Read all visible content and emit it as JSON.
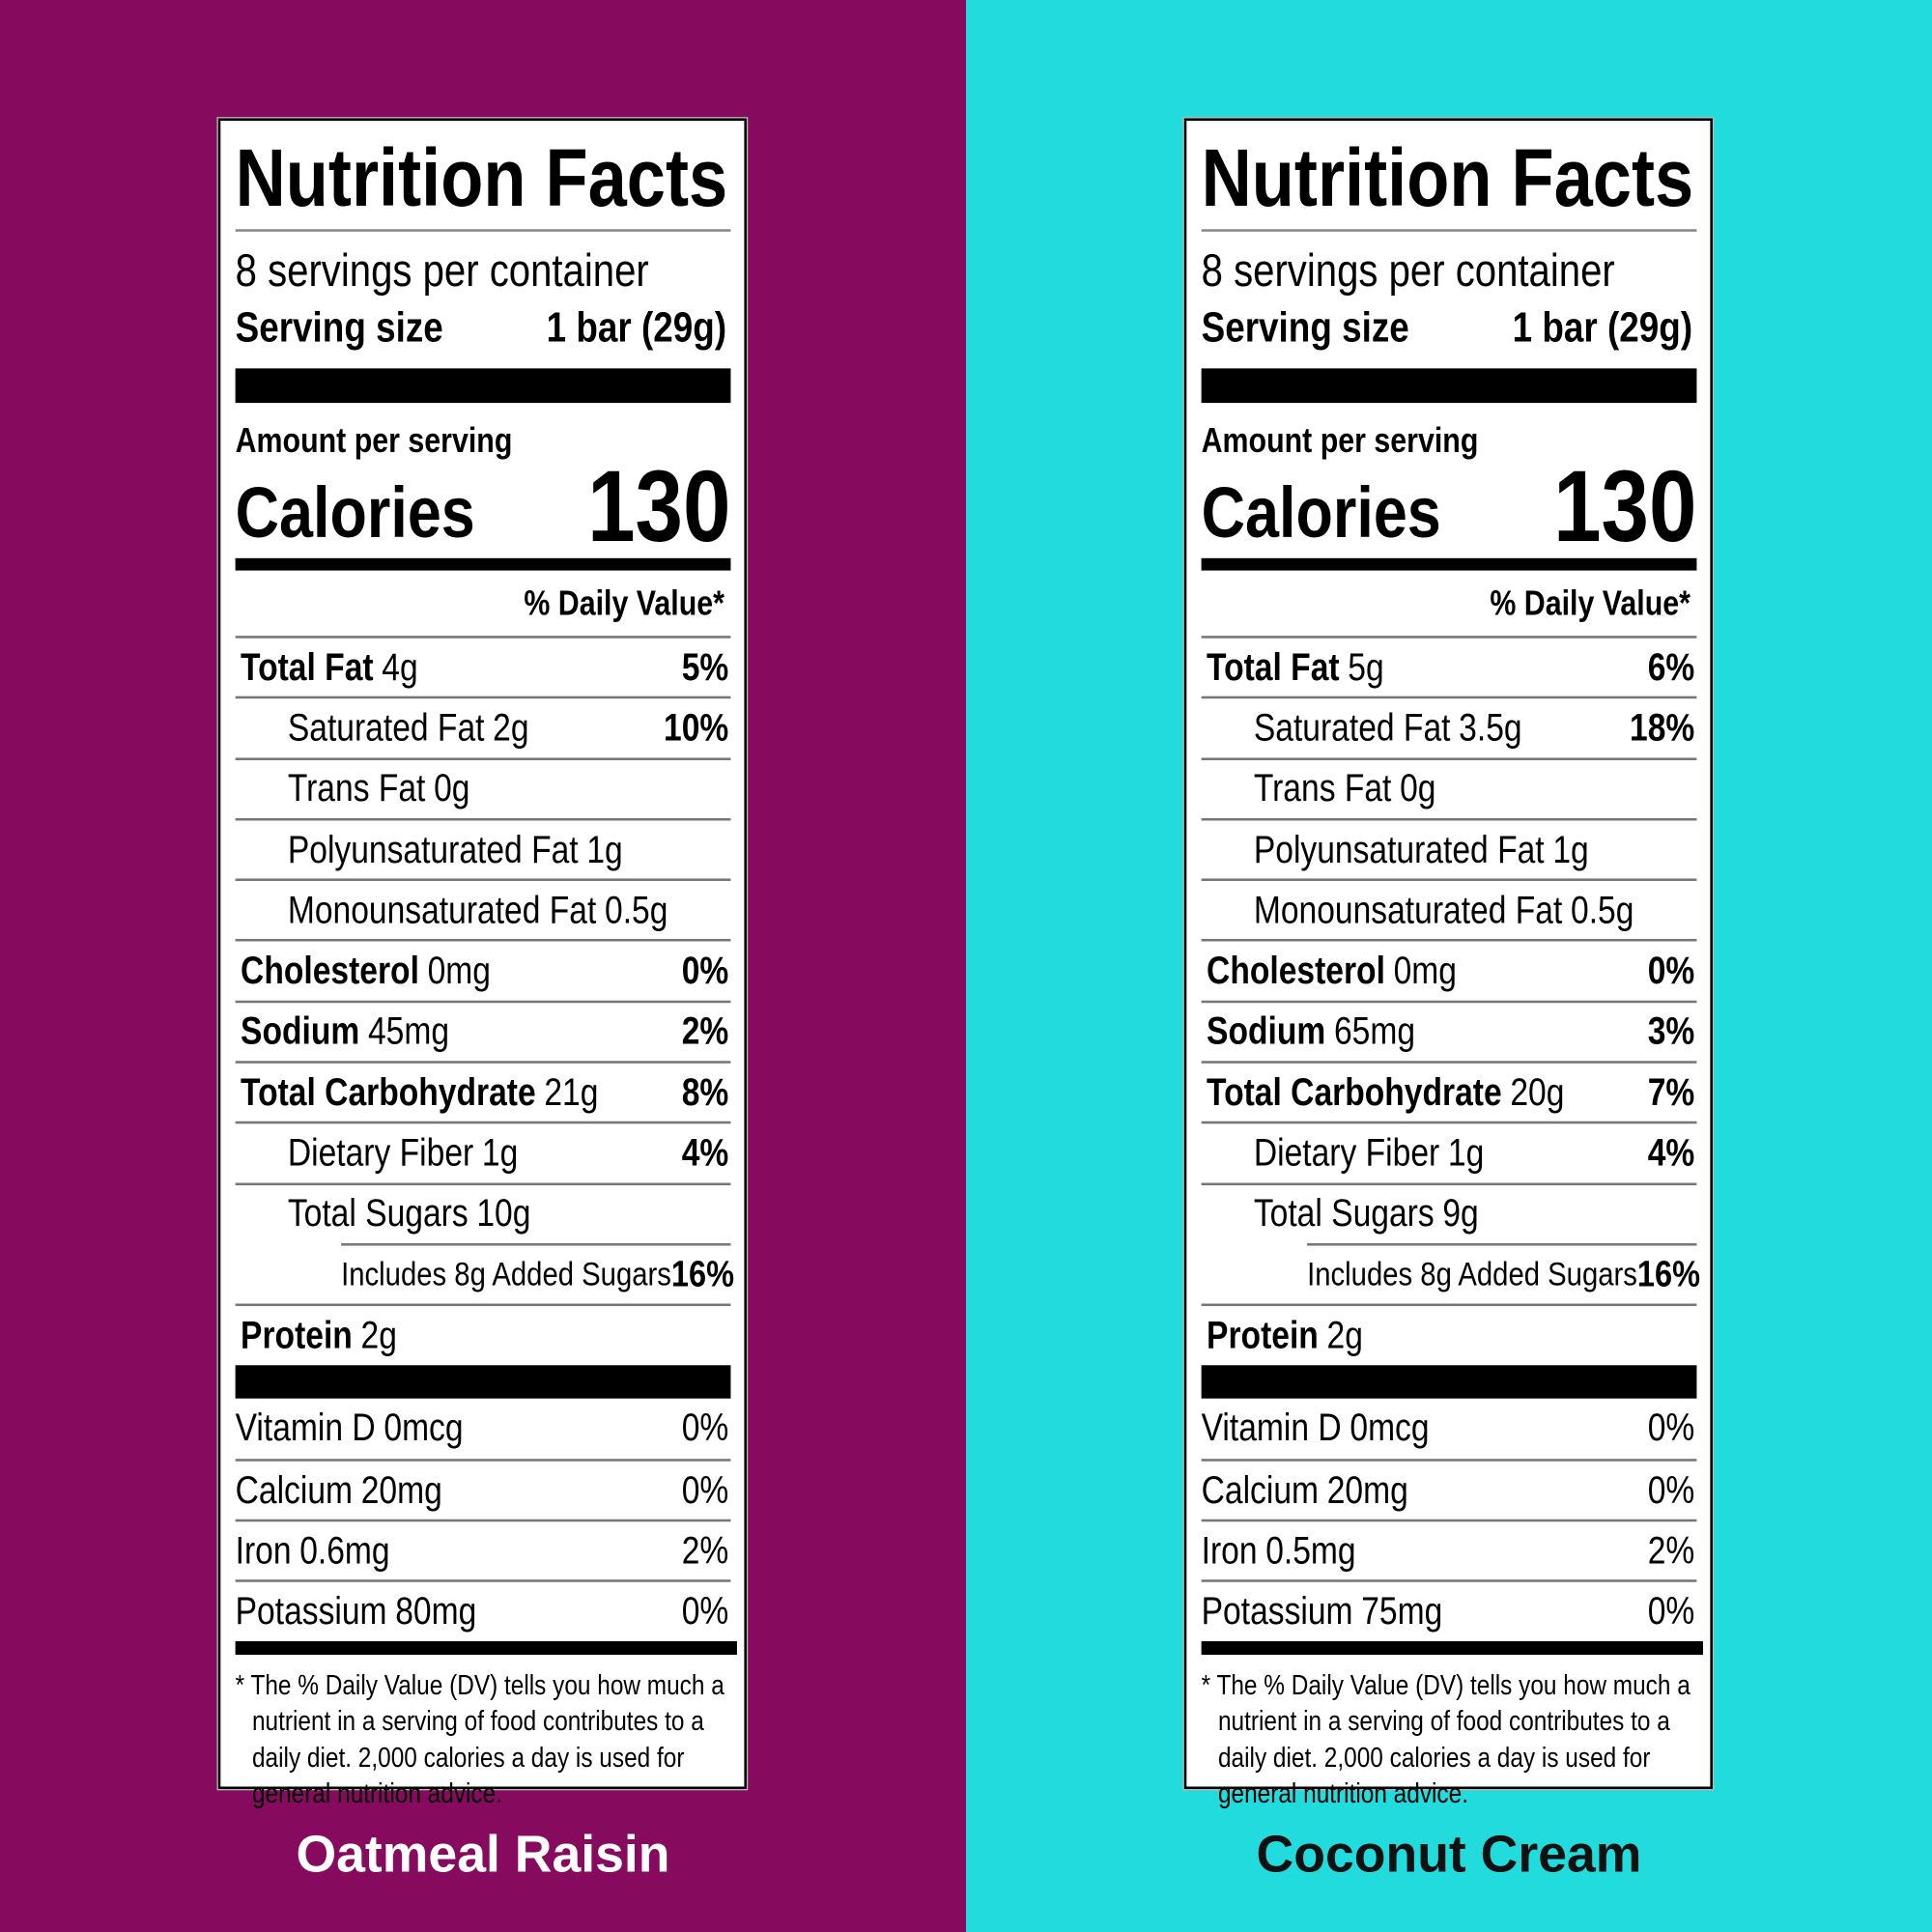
{
  "panels": [
    {
      "name": "Oatmeal Raisin",
      "label": {
        "title": "Nutrition Facts",
        "servings": "8 servings per container",
        "serving_size_label": "Serving size",
        "serving_size": "1 bar (29g)",
        "amount_per_serving": "Amount per serving",
        "calories_label": "Calories",
        "calories": 130,
        "daily_value_header": "% Daily Value*",
        "nutrients": [
          {
            "name": "Total Fat",
            "amount": "4g",
            "dv": "5%",
            "sub": [
              {
                "name": "Saturated Fat",
                "amount": "2g",
                "dv": "10%"
              },
              {
                "name": "Trans Fat",
                "amount": "0g"
              },
              {
                "name": "Polyunsaturated Fat",
                "amount": "1g"
              },
              {
                "name": "Monounsaturated Fat",
                "amount": "0.5g"
              }
            ]
          },
          {
            "name": "Cholesterol",
            "amount": "0mg",
            "dv": "0%"
          },
          {
            "name": "Sodium",
            "amount": "45mg",
            "dv": "2%"
          },
          {
            "name": "Total Carbohydrate",
            "amount": "21g",
            "dv": "8%",
            "sub": [
              {
                "name": "Dietary Fiber",
                "amount": "1g",
                "dv": "4%"
              },
              {
                "name": "Total Sugars",
                "amount": "10g",
                "sub": [
                  {
                    "name": "Includes 8g Added Sugars",
                    "dv": "16%"
                  }
                ]
              }
            ]
          },
          {
            "name": "Protein",
            "amount": "2g"
          }
        ],
        "vitamins": [
          {
            "name": "Vitamin D",
            "amount": "0mcg",
            "dv": "0%"
          },
          {
            "name": "Calcium",
            "amount": "20mg",
            "dv": "0%"
          },
          {
            "name": "Iron",
            "amount": "0.6mg",
            "dv": "2%"
          },
          {
            "name": "Potassium",
            "amount": "80mg",
            "dv": "0%"
          }
        ],
        "footnote": "* The % Daily Value (DV) tells you how much a nutrient in a serving of food contributes to a daily diet. 2,000 calories a day is used for general nutrition advice."
      }
    },
    {
      "name": "Coconut Cream",
      "label": {
        "title": "Nutrition Facts",
        "servings": "8 servings per container",
        "serving_size_label": "Serving size",
        "serving_size": "1 bar (29g)",
        "amount_per_serving": "Amount per serving",
        "calories_label": "Calories",
        "calories": 130,
        "daily_value_header": "% Daily Value*",
        "nutrients": [
          {
            "name": "Total Fat",
            "amount": "5g",
            "dv": "6%",
            "sub": [
              {
                "name": "Saturated Fat",
                "amount": "3.5g",
                "dv": "18%"
              },
              {
                "name": "Trans Fat",
                "amount": "0g"
              },
              {
                "name": "Polyunsaturated Fat",
                "amount": "1g"
              },
              {
                "name": "Monounsaturated Fat",
                "amount": "0.5g"
              }
            ]
          },
          {
            "name": "Cholesterol",
            "amount": "0mg",
            "dv": "0%"
          },
          {
            "name": "Sodium",
            "amount": "65mg",
            "dv": "3%"
          },
          {
            "name": "Total Carbohydrate",
            "amount": "20g",
            "dv": "7%",
            "sub": [
              {
                "name": "Dietary Fiber",
                "amount": "1g",
                "dv": "4%"
              },
              {
                "name": "Total Sugars",
                "amount": "9g",
                "sub": [
                  {
                    "name": "Includes 8g Added Sugars",
                    "dv": "16%"
                  }
                ]
              }
            ]
          },
          {
            "name": "Protein",
            "amount": "2g"
          }
        ],
        "vitamins": [
          {
            "name": "Vitamin D",
            "amount": "0mcg",
            "dv": "0%"
          },
          {
            "name": "Calcium",
            "amount": "20mg",
            "dv": "0%"
          },
          {
            "name": "Iron",
            "amount": "0.5mg",
            "dv": "2%"
          },
          {
            "name": "Potassium",
            "amount": "75mg",
            "dv": "0%"
          }
        ],
        "footnote": "* The % Daily Value (DV) tells you how much a nutrient in a serving of food contributes to a daily diet. 2,000 calories a day is used for general nutrition advice."
      }
    }
  ]
}
